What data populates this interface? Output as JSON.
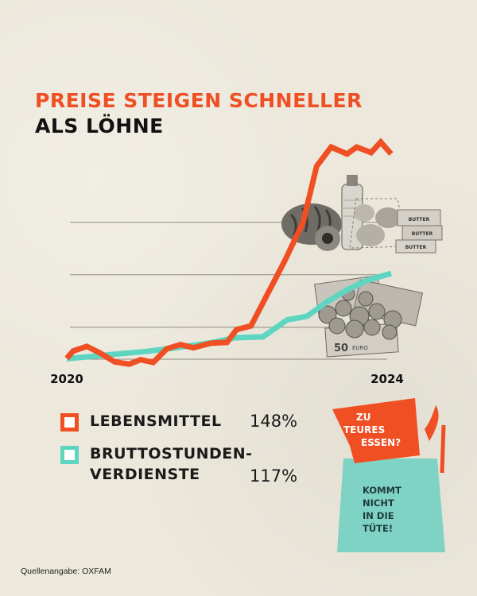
{
  "title_line1": "PREISE STEIGEN SCHNELLER",
  "title_line2": "ALS LÖHNE",
  "colors": {
    "food": "#f04e23",
    "wages": "#5ed5c1",
    "text": "#111111",
    "gridline": "#8f8b82"
  },
  "chart_data": {
    "type": "line",
    "title": "PREISE STEIGEN SCHNELLER ALS LÖHNE",
    "x_ticks": [
      "2020",
      "2024"
    ],
    "xlim": [
      2020.0,
      2024.0
    ],
    "ylim": [
      100,
      150
    ],
    "grid": true,
    "legend": "bottom-left",
    "series": [
      {
        "name": "LEBENSMITTEL",
        "value_label": "148%",
        "color": "#f04e23",
        "x": [
          2020.0,
          2020.08,
          2020.25,
          2020.4,
          2020.6,
          2020.78,
          2020.92,
          2021.08,
          2021.25,
          2021.42,
          2021.58,
          2021.8,
          2022.0,
          2022.12,
          2022.3,
          2022.5,
          2022.72,
          2022.95,
          2023.12,
          2023.3,
          2023.5,
          2023.62,
          2023.8,
          2023.92,
          2024.05
        ],
        "values": [
          100.2,
          101.8,
          102.8,
          101.5,
          99.4,
          98.9,
          99.9,
          99.3,
          102.3,
          103.2,
          102.5,
          103.5,
          103.7,
          106.5,
          107.3,
          114.1,
          121.5,
          130.0,
          142.3,
          146.5,
          145.0,
          146.5,
          145.3,
          147.6,
          145.0
        ]
      },
      {
        "name": "BRUTTOSTUNDEN-VERDIENSTE",
        "value_label": "117%",
        "color": "#5ed5c1",
        "x": [
          2020.0,
          2020.3,
          2020.6,
          2021.0,
          2021.4,
          2021.8,
          2022.1,
          2022.45,
          2022.75,
          2023.0,
          2023.25,
          2023.5,
          2023.75,
          2024.05
        ],
        "values": [
          100.1,
          100.6,
          101.1,
          101.7,
          102.6,
          103.6,
          104.7,
          104.9,
          108.6,
          109.4,
          112.6,
          115.2,
          117.3,
          118.8
        ]
      }
    ]
  },
  "legend": {
    "food_label": "LEBENSMITTEL",
    "food_value": "148%",
    "wages_label_line1": "BRUTTOSTUNDEN-",
    "wages_label_line2": "VERDIENSTE",
    "wages_value": "117%"
  },
  "illustrations": {
    "groceries_butter_label": "BUTTER",
    "money_note_label": "50",
    "money_note_currency": "EURO"
  },
  "bag": {
    "flag_line1": "ZU",
    "flag_line2": "TEURES",
    "flag_line3": "ESSEN?",
    "body_line1": "KOMMT",
    "body_line2": "NICHT",
    "body_line3": "IN DIE",
    "body_line4": "TÜTE!"
  },
  "source": "Quellenangabe: OXFAM"
}
